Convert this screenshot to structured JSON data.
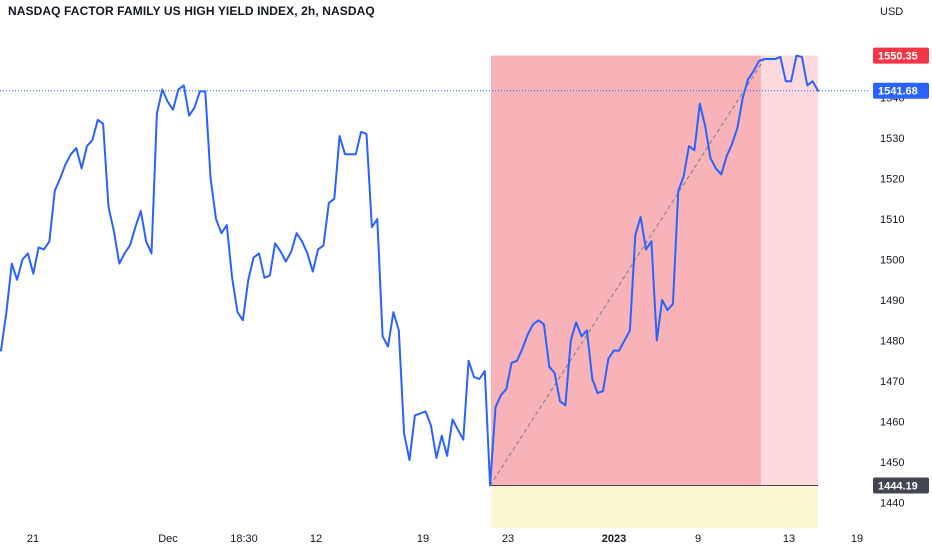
{
  "chart_data": {
    "type": "line",
    "title": "NASDAQ FACTOR FAMILY US HIGH YIELD INDEX, 2h, NASDAQ",
    "currency_label": "USD",
    "ylim": [
      1436,
      1556
    ],
    "y_ticks": [
      1440,
      1450,
      1460,
      1470,
      1480,
      1490,
      1500,
      1510,
      1520,
      1530,
      1540
    ],
    "x_tick_labels": [
      {
        "label": "21",
        "bold": false
      },
      {
        "label": "Dec",
        "bold": false
      },
      {
        "label": "18:30",
        "bold": false
      },
      {
        "label": "12",
        "bold": false
      },
      {
        "label": "19",
        "bold": false
      },
      {
        "label": "23",
        "bold": false
      },
      {
        "label": "2023",
        "bold": true
      },
      {
        "label": "9",
        "bold": false
      },
      {
        "label": "13",
        "bold": false
      },
      {
        "label": "19",
        "bold": false
      }
    ],
    "line_color": "#2962ff",
    "series": [
      {
        "values": [
          1477.5,
          1487,
          1499,
          1495,
          1500,
          1501.5,
          1496.5,
          1503,
          1502.5,
          1504.5,
          1517,
          1520,
          1523.5,
          1526,
          1527.5,
          1522.5,
          1528,
          1529.5,
          1534.5,
          1533.5,
          1513,
          1507,
          1499,
          1501.5,
          1503.5,
          1508,
          1512,
          1504.5,
          1501.5,
          1536,
          1542,
          1539,
          1537,
          1542,
          1543,
          1535.5,
          1537.5,
          1541.5,
          1541.5,
          1520,
          1510,
          1506.5,
          1508.5,
          1495.5,
          1487,
          1485,
          1495,
          1500.5,
          1501.5,
          1495.5,
          1496,
          1504,
          1502,
          1499.5,
          1502,
          1506.5,
          1504.5,
          1501.5,
          1497,
          1502.5,
          1503.5,
          1514,
          1515,
          1530.5,
          1526,
          1526,
          1526,
          1531.5,
          1531,
          1508,
          1510,
          1481,
          1478.5,
          1487,
          1482.5,
          1457,
          1450.5,
          1461.5,
          1462,
          1462.5,
          1459,
          1451,
          1456.5,
          1451.5,
          1460.5,
          1458,
          1455.5,
          1475,
          1471,
          1470.5,
          1472.5,
          1444.19,
          1463.5,
          1466.5,
          1468,
          1474.5,
          1475,
          1478,
          1481.5,
          1484,
          1485,
          1484,
          1473.5,
          1472,
          1465,
          1464,
          1480,
          1484.5,
          1481,
          1482.5,
          1470.5,
          1467,
          1467.5,
          1475.5,
          1477.5,
          1477.5,
          1480,
          1482.5,
          1506,
          1510.5,
          1502.5,
          1504.5,
          1480,
          1490,
          1487.5,
          1489,
          1517,
          1520.5,
          1528,
          1527,
          1538.5,
          1533,
          1525,
          1522.5,
          1521,
          1525.5,
          1528.5,
          1532.5,
          1540,
          1544.5,
          1546.5,
          1549,
          1549.5,
          1549.5,
          1549.5,
          1550,
          1544,
          1544,
          1550.35,
          1550,
          1543,
          1544,
          1541.68
        ]
      }
    ],
    "current_price": {
      "value": 1541.68,
      "label": "1541.68",
      "color": "#2962ff"
    },
    "position": {
      "stop_label": "1550.35",
      "stop_value": 1550.35,
      "entry_label": "1444.19",
      "entry_value": 1444.19,
      "target_value": 1440.0,
      "stop_color": "#f23645",
      "entry_color": "#434651",
      "loss_zone_color": "#f7b3b8",
      "loss_zone_faded_color": "#fbd9dc",
      "profit_zone_color": "#fdf6d2"
    }
  }
}
